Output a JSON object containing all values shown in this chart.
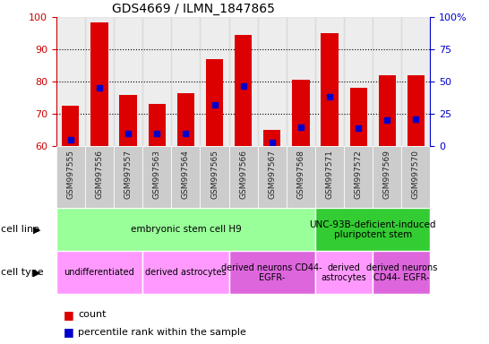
{
  "title": "GDS4669 / ILMN_1847865",
  "samples": [
    "GSM997555",
    "GSM997556",
    "GSM997557",
    "GSM997563",
    "GSM997564",
    "GSM997565",
    "GSM997566",
    "GSM997567",
    "GSM997568",
    "GSM997571",
    "GSM997572",
    "GSM997569",
    "GSM997570"
  ],
  "count_values": [
    72.5,
    98.5,
    76.0,
    73.0,
    76.5,
    87.0,
    94.5,
    65.0,
    80.5,
    95.0,
    78.0,
    82.0,
    82.0
  ],
  "percentile_values": [
    5.0,
    45.0,
    10.0,
    10.0,
    10.0,
    32.0,
    47.0,
    3.0,
    15.0,
    38.0,
    14.0,
    20.0,
    21.0
  ],
  "ymin": 60,
  "ymax": 100,
  "y2min": 0,
  "y2max": 100,
  "yticks": [
    60,
    70,
    80,
    90,
    100
  ],
  "y2ticks": [
    0,
    25,
    50,
    75,
    100
  ],
  "y2ticklabels": [
    "0",
    "25",
    "50",
    "75",
    "100%"
  ],
  "bar_color": "#dd0000",
  "dot_color": "#0000cc",
  "bar_width": 0.6,
  "cell_line_groups": [
    {
      "label": "embryonic stem cell H9",
      "start": 0,
      "end": 8,
      "color": "#99ff99"
    },
    {
      "label": "UNC-93B-deficient-induced\npluripotent stem",
      "start": 9,
      "end": 12,
      "color": "#33cc33"
    }
  ],
  "cell_type_groups": [
    {
      "label": "undifferentiated",
      "start": 0,
      "end": 2,
      "color": "#ff99ff"
    },
    {
      "label": "derived astrocytes",
      "start": 3,
      "end": 5,
      "color": "#ff99ff"
    },
    {
      "label": "derived neurons CD44-\nEGFR-",
      "start": 6,
      "end": 8,
      "color": "#dd66dd"
    },
    {
      "label": "derived\nastrocytes",
      "start": 9,
      "end": 10,
      "color": "#ff99ff"
    },
    {
      "label": "derived neurons\nCD44- EGFR-",
      "start": 11,
      "end": 12,
      "color": "#dd66dd"
    }
  ],
  "legend_count_label": "count",
  "legend_percentile_label": "percentile rank within the sample",
  "cell_line_label": "cell line",
  "cell_type_label": "cell type",
  "ytick_color_left": "#cc0000",
  "ytick_color_right": "#0000cc",
  "grid_dotted_ticks": [
    70,
    80,
    90
  ],
  "col_bg_color": "#cccccc",
  "col_bg_alpha": 0.35
}
